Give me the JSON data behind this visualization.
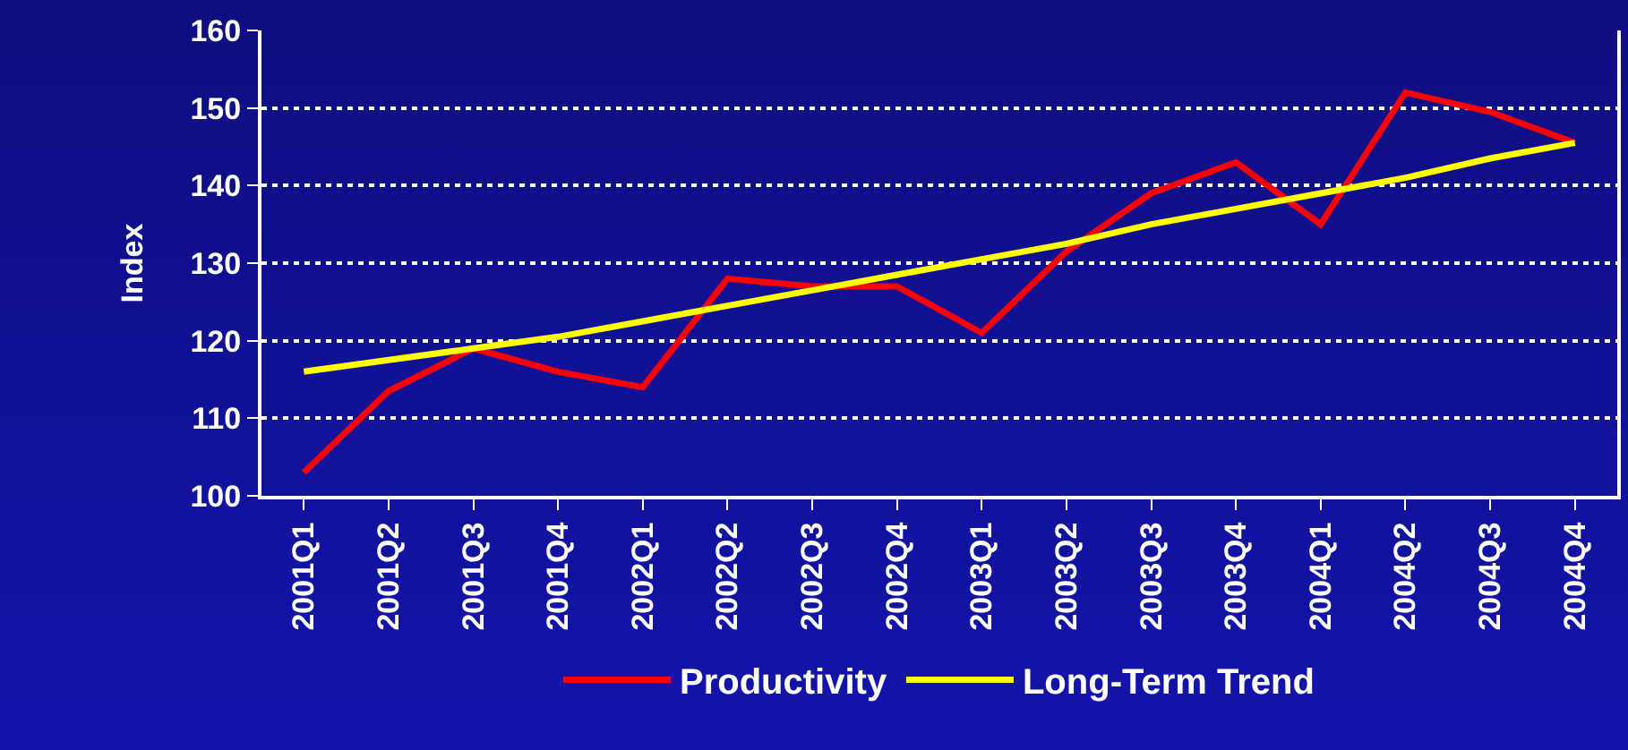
{
  "chart_data": {
    "type": "line",
    "ylabel": "Index",
    "categories": [
      "2001Q1",
      "2001Q2",
      "2001Q3",
      "2001Q4",
      "2002Q1",
      "2002Q2",
      "2002Q3",
      "2002Q4",
      "2003Q1",
      "2003Q2",
      "2003Q3",
      "2003Q4",
      "2004Q1",
      "2004Q2",
      "2004Q3",
      "2004Q4"
    ],
    "series": [
      {
        "name": "Productivity",
        "color": "#ff0000",
        "values": [
          103,
          113.5,
          119,
          116,
          114,
          128,
          127,
          127,
          121,
          131.5,
          139,
          143,
          135,
          152,
          149.5,
          145.5
        ]
      },
      {
        "name": "Long-Term Trend",
        "color": "#ffff00",
        "values": [
          116,
          117.5,
          119,
          120.5,
          122.5,
          124.5,
          126.5,
          128.5,
          130.5,
          132.5,
          135,
          137,
          139,
          141,
          143.5,
          145.5
        ]
      }
    ],
    "ylim": [
      100,
      160
    ],
    "yticks": [
      100,
      110,
      120,
      130,
      140,
      150,
      160
    ],
    "grid": "y",
    "legend": "bottom",
    "marker": "none",
    "line_style": "solid"
  }
}
